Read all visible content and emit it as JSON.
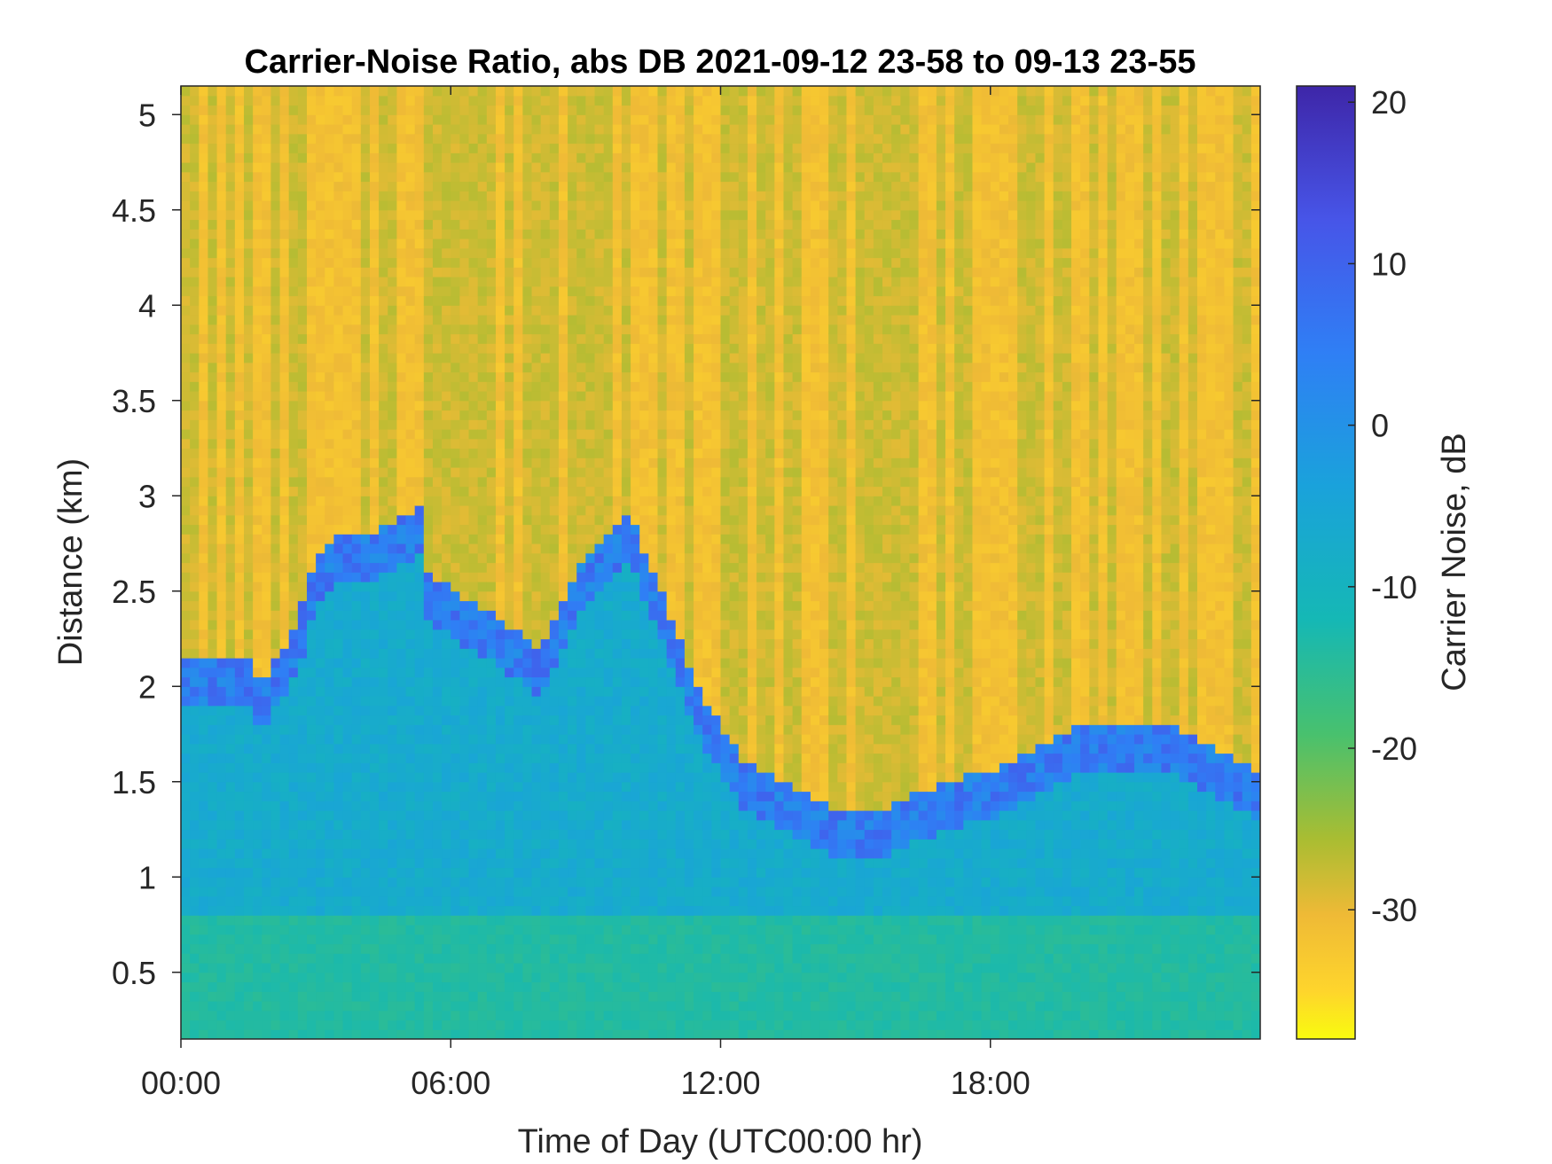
{
  "chart_data": {
    "type": "heatmap",
    "title": "Carrier-Noise Ratio, abs DB 2021-09-12 23-58 to 09-13 23-55",
    "xlabel": "Time of Day (UTC00:00 hr)",
    "ylabel": "Distance (km)",
    "colorbar_label": "Carrier Noise, dB",
    "xlim": [
      0,
      24
    ],
    "ylim": [
      0.15,
      5.15
    ],
    "x_ticks": [
      0,
      6,
      12,
      18
    ],
    "x_tick_labels": [
      "00:00",
      "06:00",
      "12:00",
      "18:00"
    ],
    "y_ticks": [
      0.5,
      1,
      1.5,
      2,
      2.5,
      3,
      3.5,
      4,
      4.5,
      5
    ],
    "y_tick_labels": [
      "0.5",
      "1",
      "1.5",
      "2",
      "2.5",
      "3",
      "3.5",
      "4",
      "4.5",
      "5"
    ],
    "color_range": [
      -38,
      21
    ],
    "colorbar_ticks": [
      20,
      10,
      0,
      -10,
      -20,
      -30
    ],
    "colorbar_tick_labels": [
      "20",
      "10",
      "0",
      "-10",
      "-20",
      "-30"
    ],
    "colormap": "parula-reversed",
    "grid": false,
    "approx_field": {
      "x_step_hr": 0.2,
      "y_step_km": 0.05,
      "ground_layer": {
        "top_km": 0.8,
        "value_db": -14
      },
      "boundary_layer_top_km": [
        {
          "x": 0,
          "y": 2.05
        },
        {
          "x": 1.5,
          "y": 2.05
        },
        {
          "x": 1.8,
          "y": 1.9
        },
        {
          "x": 2.6,
          "y": 2.25
        },
        {
          "x": 3.0,
          "y": 2.55
        },
        {
          "x": 3.5,
          "y": 2.7
        },
        {
          "x": 4.2,
          "y": 2.7
        },
        {
          "x": 5.3,
          "y": 2.85
        },
        {
          "x": 5.5,
          "y": 2.5
        },
        {
          "x": 8.0,
          "y": 2.1
        },
        {
          "x": 9.0,
          "y": 2.6
        },
        {
          "x": 10.0,
          "y": 2.8
        },
        {
          "x": 11.5,
          "y": 1.9
        },
        {
          "x": 12.5,
          "y": 1.5
        },
        {
          "x": 14.7,
          "y": 1.25
        },
        {
          "x": 15.5,
          "y": 1.25
        },
        {
          "x": 17.0,
          "y": 1.4
        },
        {
          "x": 18.5,
          "y": 1.5
        },
        {
          "x": 20.0,
          "y": 1.7
        },
        {
          "x": 22.0,
          "y": 1.7
        },
        {
          "x": 24.0,
          "y": 1.45
        }
      ],
      "boundary_layer_value_db": -7,
      "boundary_top_value_db": 5,
      "upper_air_value_db": -28
    }
  }
}
